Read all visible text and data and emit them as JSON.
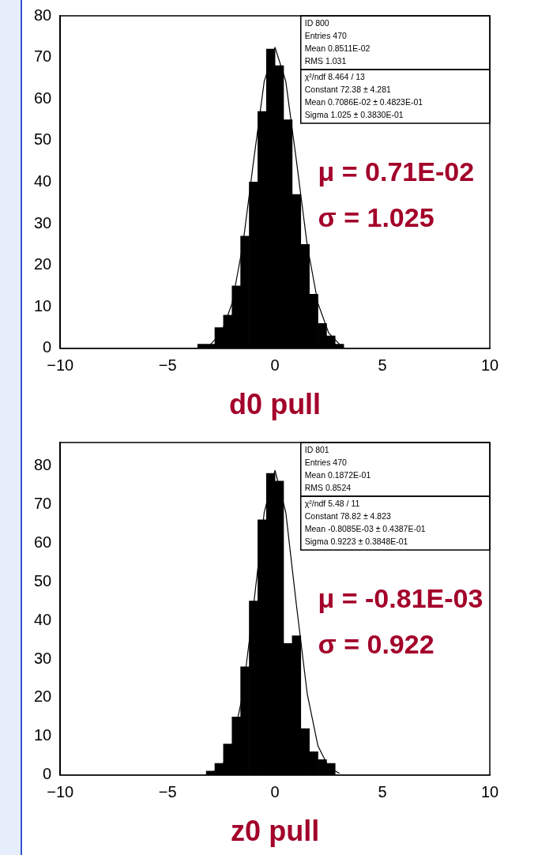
{
  "chart_data": [
    {
      "type": "histogram",
      "color": "#000000",
      "xlabel": "d0 pull",
      "xlim": [
        -10,
        10
      ],
      "xticks": [
        -10,
        -5,
        0,
        5,
        10
      ],
      "ylim": [
        0,
        80
      ],
      "yticks": [
        0,
        10,
        20,
        30,
        40,
        50,
        60,
        70,
        80
      ],
      "grid": false,
      "legend": false,
      "bins": [
        -3.6,
        -3.2,
        -2.8,
        -2.4,
        -2.0,
        -1.6,
        -1.2,
        -0.8,
        -0.4,
        0,
        0.4,
        0.8,
        1.2,
        1.6,
        2.0,
        2.4,
        2.8,
        3.2,
        3.6
      ],
      "values": [
        1,
        1,
        5,
        8,
        15,
        27,
        40,
        57,
        72,
        68,
        55,
        37,
        25,
        13,
        6,
        3,
        1,
        0
      ],
      "series": [
        {
          "type": "line",
          "color": "#000000",
          "x": [
            -3,
            -2.5,
            -2,
            -1.5,
            -1,
            -0.5,
            0,
            0.5,
            1,
            1.5,
            2,
            2.5,
            3
          ],
          "values": [
            1,
            3.7,
            10.8,
            24.8,
            45,
            64.3,
            72.4,
            64.3,
            45,
            24.8,
            10.8,
            3.7,
            1
          ]
        }
      ],
      "annotations": [
        "ID 800",
        "Entries 470",
        "Mean 0.8511E-02",
        "RMS 1.031",
        "χ²/ndf 8.464 / 13",
        "Constant 72.38 ± 4.281",
        "Mean 0.7086E-02 ± 0.4823E-01",
        "Sigma 1.025 ± 0.3830E-01",
        "μ = 0.71E-02",
        "σ = 1.025"
      ]
    },
    {
      "type": "histogram",
      "color": "#000000",
      "xlabel": "z0 pull",
      "xlim": [
        -10,
        10
      ],
      "xticks": [
        -10,
        -5,
        0,
        5,
        10
      ],
      "ylim": [
        0,
        86
      ],
      "yticks": [
        0,
        10,
        20,
        30,
        40,
        50,
        60,
        70,
        80
      ],
      "grid": false,
      "legend": false,
      "bins": [
        -3.2,
        -2.8,
        -2.4,
        -2.0,
        -1.6,
        -1.2,
        -0.8,
        -0.4,
        0,
        0.4,
        0.8,
        1.2,
        1.6,
        2.0,
        2.4,
        2.8,
        3.2
      ],
      "values": [
        1,
        3,
        8,
        15,
        28,
        45,
        66,
        78,
        76,
        34,
        36,
        12,
        6,
        4,
        3,
        0
      ],
      "series": [
        {
          "type": "line",
          "color": "#000000",
          "x": [
            -3,
            -2.5,
            -2,
            -1.5,
            -1,
            -0.5,
            0,
            0.5,
            1,
            1.5,
            2,
            2.5,
            3
          ],
          "values": [
            0.4,
            2,
            7.5,
            21,
            43.8,
            68,
            78.8,
            68,
            43.8,
            21,
            7.5,
            2,
            0.4
          ]
        }
      ],
      "annotations": [
        "ID 801",
        "Entries 470",
        "Mean 0.1872E-01",
        "RMS 0.8524",
        "χ²/ndf 5.48 / 11",
        "Constant 78.82 ± 4.823",
        "Mean -0.8085E-03 ± 0.4387E-01",
        "Sigma 0.9223 ± 0.3848E-01",
        "μ = -0.81E-03",
        "σ = 0.922"
      ]
    }
  ]
}
